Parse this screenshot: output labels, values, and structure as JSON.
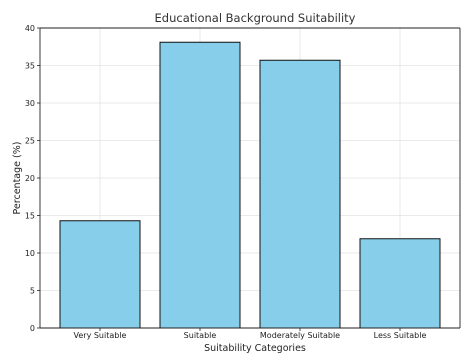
{
  "chart_data": {
    "type": "bar",
    "title": "Educational Background Suitability",
    "xlabel": "Suitability Categories",
    "ylabel": "Percentage (%)",
    "categories": [
      "Very Suitable",
      "Suitable",
      "Moderately Suitable",
      "Less Suitable"
    ],
    "values": [
      14.3,
      38.1,
      35.7,
      11.9
    ],
    "ylim": [
      0,
      40
    ],
    "yticks": [
      0,
      5,
      10,
      15,
      20,
      25,
      30,
      35,
      40
    ],
    "grid": true,
    "bar_color": "#87ceeb",
    "edge_color": "#111111"
  }
}
